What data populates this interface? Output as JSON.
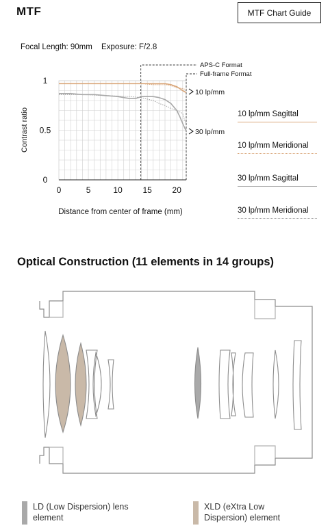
{
  "header": {
    "title": "MTF",
    "guide_button": "MTF Chart Guide"
  },
  "info": {
    "focal_length": "Focal Length: 90mm",
    "exposure": "Exposure: F/2.8"
  },
  "chart_data": {
    "type": "line",
    "ylabel": "Contrast ratio",
    "xlabel": "Distance from center of frame (mm)",
    "xlim": [
      0,
      21.6
    ],
    "ylim": [
      0,
      1
    ],
    "xticks": [
      0,
      5,
      10,
      15,
      20
    ],
    "yticks": [
      0,
      0.5,
      1
    ],
    "ytick_labels": [
      "0",
      "0.5",
      "1"
    ],
    "grid": true,
    "region_markers": [
      {
        "label": "APS-C Format",
        "x": 13.9
      },
      {
        "label": "Full-frame Format",
        "x": 21.6
      }
    ],
    "annotations": [
      {
        "text": "10 lp/mm",
        "x": 21.6,
        "y": 0.89
      },
      {
        "text": "30 lp/mm",
        "x": 21.6,
        "y": 0.49
      }
    ],
    "series": [
      {
        "name": "10 lp/mm Sagittal",
        "color": "#d9a679",
        "dash": "solid",
        "x": [
          0,
          4,
          8,
          12,
          14,
          16,
          18,
          19,
          20,
          21,
          21.6
        ],
        "y": [
          0.97,
          0.97,
          0.97,
          0.97,
          0.97,
          0.97,
          0.97,
          0.96,
          0.94,
          0.9,
          0.88
        ]
      },
      {
        "name": "10 lp/mm Meridional",
        "color": "#d9a679",
        "dash": "dotted",
        "x": [
          0,
          4,
          8,
          12,
          14,
          16,
          18,
          19,
          20,
          21,
          21.6
        ],
        "y": [
          0.97,
          0.97,
          0.97,
          0.97,
          0.97,
          0.96,
          0.96,
          0.95,
          0.93,
          0.92,
          0.91
        ]
      },
      {
        "name": "30 lp/mm Sagittal",
        "color": "#a8a8a8",
        "dash": "solid",
        "x": [
          0,
          2,
          4,
          6,
          8,
          10,
          11,
          12,
          13,
          14,
          15,
          16,
          17,
          18,
          19,
          20,
          20.5,
          21,
          21.6
        ],
        "y": [
          0.87,
          0.87,
          0.86,
          0.86,
          0.85,
          0.84,
          0.83,
          0.82,
          0.82,
          0.84,
          0.84,
          0.84,
          0.83,
          0.81,
          0.77,
          0.7,
          0.64,
          0.57,
          0.49
        ]
      },
      {
        "name": "30 lp/mm Meridional",
        "color": "#a8a8a8",
        "dash": "dotted",
        "x": [
          0,
          4,
          8,
          12,
          14,
          16,
          17,
          18,
          19,
          20,
          21,
          21.6
        ],
        "y": [
          0.86,
          0.86,
          0.85,
          0.84,
          0.83,
          0.8,
          0.77,
          0.75,
          0.72,
          0.7,
          0.67,
          0.55
        ]
      }
    ]
  },
  "legend": {
    "items": [
      {
        "label": "10 lp/mm Sagittal"
      },
      {
        "label": "10 lp/mm Meridional"
      },
      {
        "label": "30 lp/mm Sagittal"
      },
      {
        "label": "30 lp/mm Meridional"
      }
    ]
  },
  "optical": {
    "title": "Optical Construction (11 elements in 14 groups)"
  },
  "lens_key": {
    "ld": {
      "label": "LD (Low Dispersion) lens element",
      "color": "#a9a9a9"
    },
    "xld": {
      "label": "XLD (eXtra Low Dispersion) element",
      "color": "#c9b9a8"
    }
  },
  "colors": {
    "lens_outline": "#8c8c8c",
    "grid": "#cfcfcf",
    "axis": "#222222"
  }
}
